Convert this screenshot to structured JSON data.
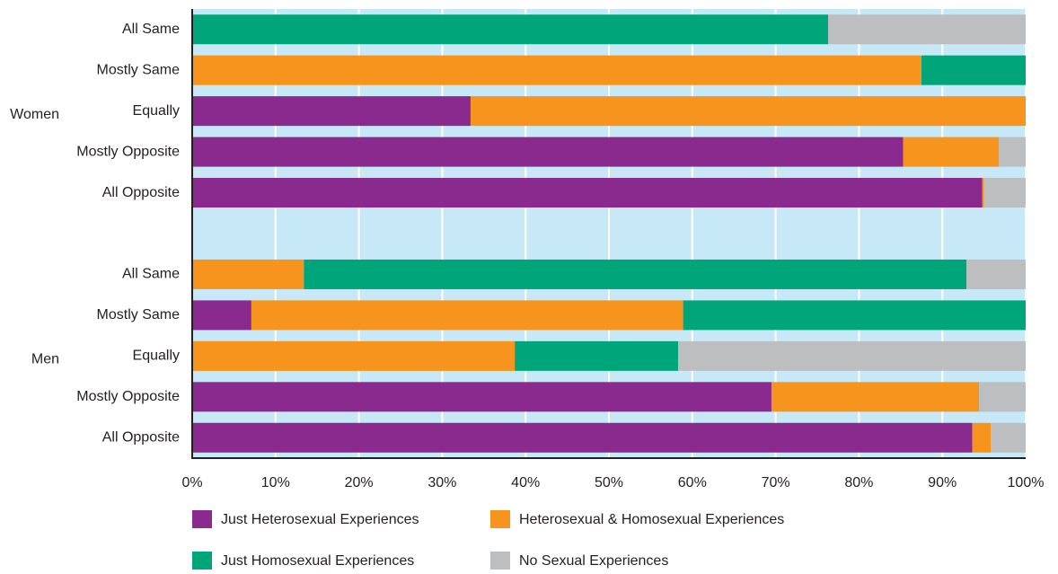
{
  "chart_data": {
    "type": "stacked-barh",
    "categories": [
      "All Same",
      "Mostly Same",
      "Equally",
      "Mostly Opposite",
      "All Opposite",
      null,
      "All Same",
      "Mostly Same",
      "Equally",
      "Mostly Opposite",
      "All Opposite"
    ],
    "group_labels": [
      null,
      null,
      "Women",
      null,
      null,
      null,
      null,
      null,
      "Men",
      null,
      null
    ],
    "series": [
      {
        "name": "Just Heterosexual Experiences",
        "color": "#8b2a8e",
        "values": [
          0,
          0,
          33.4,
          85.3,
          94.8,
          null,
          0,
          7.1,
          0,
          69.5,
          93.6
        ]
      },
      {
        "name": "Heterosexual & Homosexual Experiences",
        "color": "#f7941d",
        "values": [
          0,
          87.5,
          66.6,
          11.5,
          0.2,
          null,
          13.4,
          51.8,
          38.7,
          24.9,
          2.2
        ]
      },
      {
        "name": "Just Homosexual Experiences",
        "color": "#00a67a",
        "values": [
          76.3,
          12.5,
          0,
          0,
          0,
          null,
          79.5,
          41.1,
          19.6,
          0,
          0
        ]
      },
      {
        "name": "No Sexual Experiences",
        "color": "#bcbec0",
        "values": [
          23.7,
          0,
          0,
          3.2,
          5,
          null,
          7.1,
          0,
          41.7,
          5.6,
          4.2
        ]
      }
    ],
    "xlim": [
      0,
      100
    ],
    "xticks": [
      {
        "value": 0,
        "label": "0%"
      },
      {
        "value": 10,
        "label": "10%"
      },
      {
        "value": 20,
        "label": "20%"
      },
      {
        "value": 30,
        "label": "30%"
      },
      {
        "value": 40,
        "label": "40%"
      },
      {
        "value": 50,
        "label": "50%"
      },
      {
        "value": 60,
        "label": "60%"
      },
      {
        "value": 70,
        "label": "70%"
      },
      {
        "value": 80,
        "label": "80%"
      },
      {
        "value": 90,
        "label": "90%"
      },
      {
        "value": 100,
        "label": "100%"
      }
    ],
    "grid": true,
    "plot_background": "#c7e9f7",
    "legend": "bottom"
  }
}
